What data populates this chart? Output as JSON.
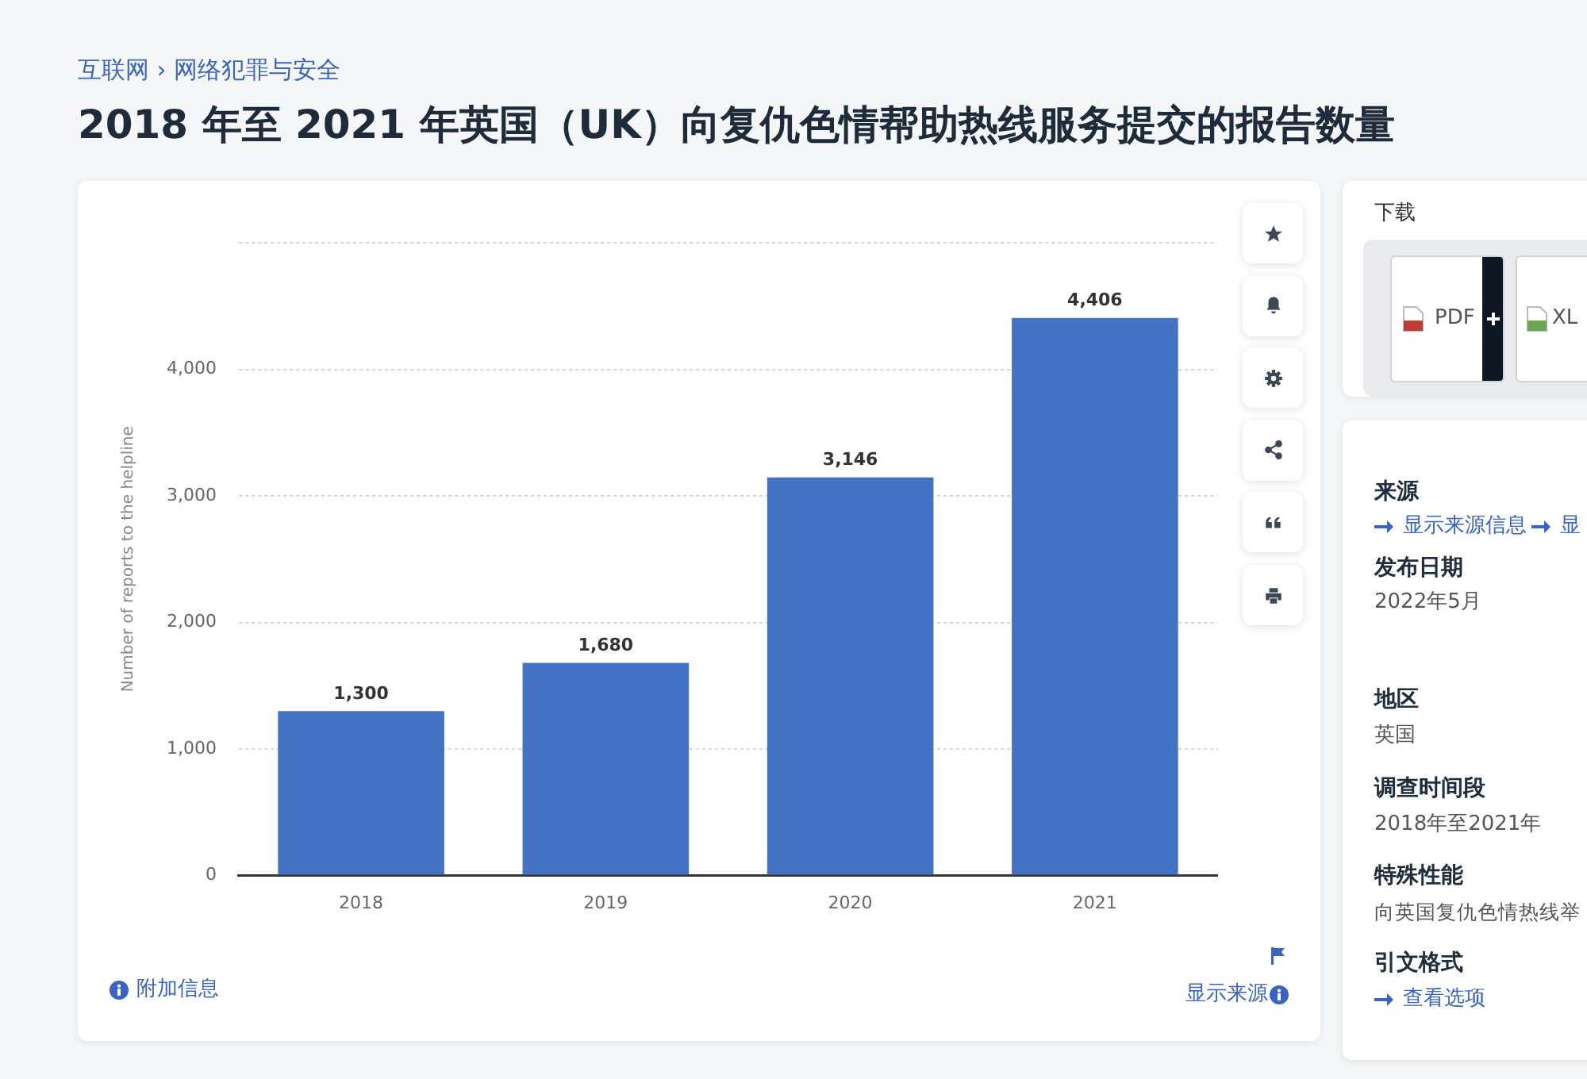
{
  "chart_data": {
    "type": "bar",
    "title": "2018 年至 2021 年英国（UK）向复仇色情帮助热线服务提交的报告数量",
    "subtitle": "互联网 › 网络犯罪与安全",
    "ylabel": "Number of reports to the helpline",
    "categories": [
      "2018",
      "2019",
      "2020",
      "2021"
    ],
    "values": [
      1300,
      1680,
      3146,
      4406
    ],
    "value_labels": [
      "1,300",
      "1,680",
      "3,146",
      "4,406"
    ],
    "color": "#4472c4",
    "ylim": [
      0,
      5000
    ],
    "yticks": [
      0,
      {
        "value": 1000,
        "label": "1,000"
      },
      {
        "value": 2000,
        "label": "2,000"
      },
      {
        "value": 3000,
        "label": "3,000"
      },
      {
        "value": 4000,
        "label": "4,000"
      },
      {
        "value": 5000,
        "label": null
      }
    ],
    "grid": "y",
    "annotations": [
      "附加信息",
      "显示来源",
      "下载",
      "PDF",
      "XL",
      "来源",
      "显示来源信息",
      "显",
      "发布日期",
      "2022年5月",
      "地区",
      "英国",
      "调查时间段",
      "2018年至2021年",
      "特殊性能",
      "向英国复仇色情热线举",
      "引文格式",
      "查看选项"
    ]
  }
}
